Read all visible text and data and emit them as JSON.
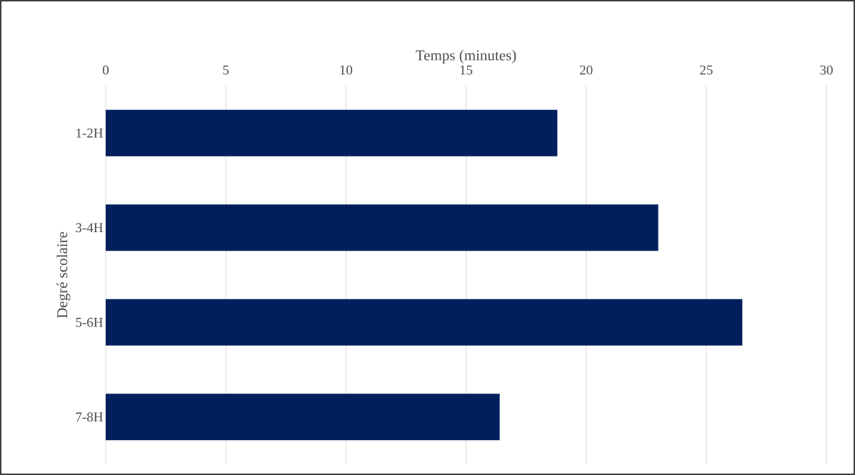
{
  "chart_data": {
    "type": "bar",
    "orientation": "horizontal",
    "xlabel": "Temps (minutes)",
    "ylabel": "Degré scolaire",
    "categories": [
      "1-2H",
      "3-4H",
      "5-6H",
      "7-8H"
    ],
    "values": [
      18.8,
      23.0,
      26.5,
      16.4
    ],
    "color": "#001f5c",
    "xlim": [
      0,
      30
    ],
    "xticks": [
      0,
      5,
      10,
      15,
      20,
      25,
      30
    ],
    "grid": "x"
  }
}
